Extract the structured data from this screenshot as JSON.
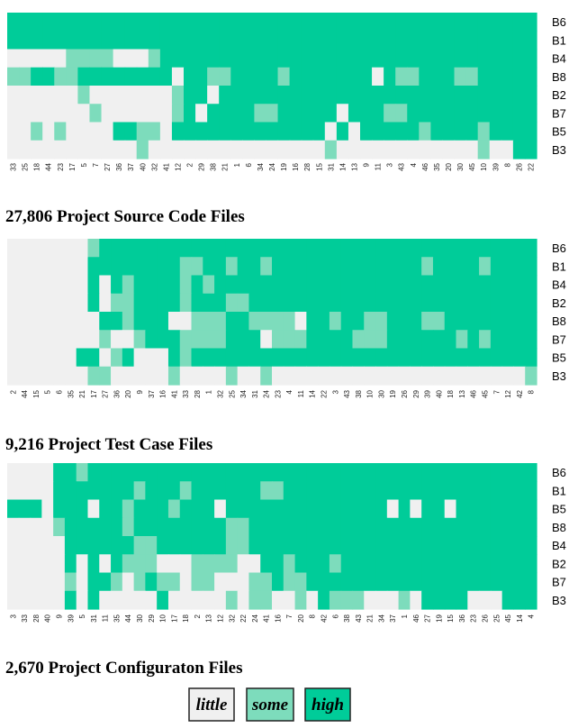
{
  "colors": {
    "little": "#f0f0f0",
    "some": "#7ddcbc",
    "high": "#00cc99"
  },
  "legend": [
    {
      "key": "little",
      "label": "little"
    },
    {
      "key": "some",
      "label": "some"
    },
    {
      "key": "high",
      "label": "high"
    }
  ],
  "chart_data": [
    {
      "type": "heatmap",
      "title": "27,806 Project Source Code Files",
      "rows": [
        "B6",
        "B1",
        "B4",
        "B8",
        "B2",
        "B7",
        "B5",
        "B3"
      ],
      "columns": [
        "33",
        "25",
        "18",
        "44",
        "23",
        "17",
        "5",
        "7",
        "27",
        "36",
        "37",
        "40",
        "32",
        "41",
        "12",
        "2",
        "29",
        "38",
        "21",
        "1",
        "6",
        "34",
        "24",
        "19",
        "16",
        "28",
        "15",
        "31",
        "14",
        "13",
        "9",
        "11",
        "3",
        "43",
        "4",
        "46",
        "35",
        "20",
        "30",
        "45",
        "10",
        "39",
        "8",
        "26",
        "22"
      ],
      "levels": [
        "222222222222222222222222222222222222222222222",
        "222222222222222222222222222222222222222222222",
        "000001111000122222222222222222222222222222222",
        "112211222222220221122221222222202112221122222",
        "000000100000001220222222222222222222222222222",
        "000000010000001202222112222202221122222222222",
        "001010000221102222222222222020222221222212222",
        "000000000001000000000000000100000000000010022"
      ]
    },
    {
      "type": "heatmap",
      "title": "9,216 Project Test Case Files",
      "rows": [
        "B6",
        "B1",
        "B4",
        "B2",
        "B8",
        "B7",
        "B5",
        "B3"
      ],
      "columns": [
        "2",
        "44",
        "15",
        "5",
        "6",
        "35",
        "21",
        "17",
        "27",
        "36",
        "20",
        "9",
        "37",
        "16",
        "41",
        "33",
        "28",
        "1",
        "32",
        "25",
        "34",
        "31",
        "24",
        "23",
        "4",
        "11",
        "14",
        "22",
        "3",
        "43",
        "38",
        "10",
        "30",
        "19",
        "26",
        "29",
        "39",
        "40",
        "18",
        "13",
        "46",
        "45",
        "7",
        "12",
        "42",
        "8"
      ],
      "levels": [
        "0000000122222222222222222222222222222222222222",
        "0000000222222221122122122222222222221222212222",
        "0000000202122221212222222222222222222222222222",
        "0000000201122221222112222222222222222222222222",
        "0000000022122200111221111022122112221122222222",
        "0000000010012221111222011122221112222221212222",
        "0000002201200021222222222222222222222222222222",
        "0000000110000010000100100000000000000000000001"
      ]
    },
    {
      "type": "heatmap",
      "title": "2,670 Project Configuraton Files",
      "rows": [
        "B6",
        "B1",
        "B5",
        "B8",
        "B4",
        "B2",
        "B7",
        "B3"
      ],
      "columns": [
        "3",
        "33",
        "28",
        "40",
        "9",
        "39",
        "5",
        "31",
        "11",
        "35",
        "44",
        "30",
        "29",
        "10",
        "17",
        "18",
        "2",
        "13",
        "12",
        "32",
        "22",
        "24",
        "41",
        "16",
        "7",
        "20",
        "8",
        "42",
        "6",
        "38",
        "43",
        "21",
        "34",
        "37",
        "1",
        "46",
        "27",
        "19",
        "15",
        "36",
        "23",
        "26",
        "25",
        "45",
        "14",
        "4"
      ],
      "levels": [
        "0000221222222222222222222222222222222222222222",
        "0000222222212221222222112222222222222222222222",
        "2220222022122212220222222222222220202202222222",
        "0000122222122222222112222222222222222222222222",
        "0000022222211222222112222222222222222222222222",
        "0000020202111000111100221222122222222222222222",
        "0000010221012110110001121122222222222222222222",
        "0000020200000200000101100102111000102222000222"
      ]
    }
  ]
}
